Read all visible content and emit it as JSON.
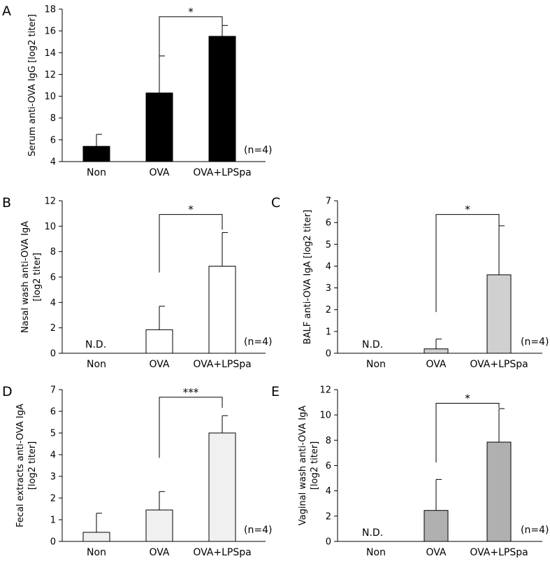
{
  "figure_colors": {
    "axis": "#000000",
    "bar_stroke": "#000000"
  },
  "chart_data": [
    {
      "panel": "A",
      "type": "bar",
      "ylabel": [
        "Serum anti-OVA IgG [log2 titer]"
      ],
      "categories": [
        "Non",
        "OVA",
        "OVA+LPSpa"
      ],
      "values": [
        5.4,
        10.3,
        15.5
      ],
      "errors": [
        1.1,
        3.4,
        1.0
      ],
      "ylim": [
        4,
        18
      ],
      "yticks": [
        4,
        6,
        8,
        10,
        12,
        14,
        16,
        18
      ],
      "bar_color": "#000000",
      "annotations": [
        {
          "from": "OVA",
          "to": "OVA+LPSpa",
          "label": "*"
        }
      ],
      "nd_label": "",
      "n_label": "(n=4)"
    },
    {
      "panel": "B",
      "type": "bar",
      "ylabel": [
        "Nasal wash anti-OVA IgA",
        "[log2 titer]"
      ],
      "categories": [
        "Non",
        "OVA",
        "OVA+LPSpa"
      ],
      "values": [
        0,
        1.85,
        6.85
      ],
      "errors": [
        0,
        1.85,
        2.65
      ],
      "ylim": [
        0,
        12
      ],
      "yticks": [
        0,
        2,
        4,
        6,
        8,
        10,
        12
      ],
      "bar_color": "#ffffff",
      "annotations": [
        {
          "from": "OVA",
          "to": "OVA+LPSpa",
          "label": "*"
        }
      ],
      "nd_label": "N.D.",
      "n_label": "(n=4)"
    },
    {
      "panel": "C",
      "type": "bar",
      "ylabel": [
        "BALF anti-OVA IgA [log2 titer]"
      ],
      "categories": [
        "Non",
        "OVA",
        "OVA+LPSpa"
      ],
      "values": [
        0,
        0.2,
        3.6
      ],
      "errors": [
        0,
        0.45,
        2.25
      ],
      "ylim": [
        0,
        7
      ],
      "yticks": [
        0,
        1,
        2,
        3,
        4,
        5,
        6,
        7
      ],
      "bar_color": "#d0d0d0",
      "annotations": [
        {
          "from": "OVA",
          "to": "OVA+LPSpa",
          "label": "*"
        }
      ],
      "nd_label": "N.D.",
      "n_label": "(n=4)"
    },
    {
      "panel": "D",
      "type": "bar",
      "ylabel": [
        "Fecal extracts anti-OVA IgA",
        "[log2 titer]"
      ],
      "categories": [
        "Non",
        "OVA",
        "OVA+LPSpa"
      ],
      "values": [
        0.42,
        1.45,
        5.0
      ],
      "errors": [
        0.88,
        0.85,
        0.8
      ],
      "ylim": [
        0,
        7
      ],
      "yticks": [
        0,
        1,
        2,
        3,
        4,
        5,
        6,
        7
      ],
      "bar_color": "#f0f0f0",
      "annotations": [
        {
          "from": "OVA",
          "to": "OVA+LPSpa",
          "label": "***"
        }
      ],
      "nd_label": "",
      "n_label": "(n=4)"
    },
    {
      "panel": "E",
      "type": "bar",
      "ylabel": [
        "Vaginal wash anti-OVA IgA",
        "[log2 titer]"
      ],
      "categories": [
        "Non",
        "OVA",
        "OVA+LPSpa"
      ],
      "values": [
        0,
        2.45,
        7.85
      ],
      "errors": [
        0,
        2.45,
        2.65
      ],
      "ylim": [
        0,
        12
      ],
      "yticks": [
        0,
        2,
        4,
        6,
        8,
        10,
        12
      ],
      "bar_color": "#b0b0b0",
      "annotations": [
        {
          "from": "OVA",
          "to": "OVA+LPSpa",
          "label": "*"
        }
      ],
      "nd_label": "N.D.",
      "n_label": "(n=4)"
    }
  ]
}
